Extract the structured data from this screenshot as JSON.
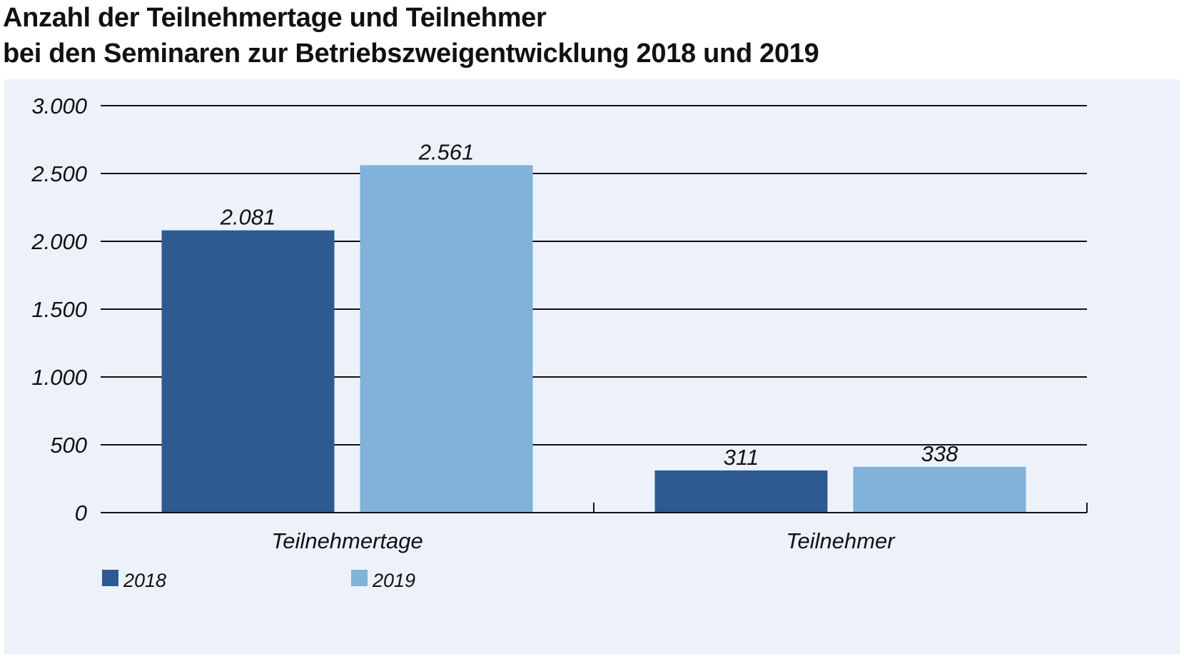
{
  "header": {
    "title_line1": "Anzahl der Teilnehmertage und  Teilnehmer",
    "title_line2": "bei den Seminaren zur Betriebszweigentwicklung 2018 und 2019"
  },
  "colors": {
    "panel_background": "#edf1f9",
    "series_2018": "#2d5a90",
    "series_2019": "#80b2da",
    "gridline": "#111111"
  },
  "chart_data": {
    "type": "bar",
    "title": "Anzahl der Teilnehmertage und  Teilnehmer bei den Seminaren zur Betriebszweigentwicklung 2018 und 2019",
    "categories": [
      "Teilnehmertage",
      "Teilnehmer"
    ],
    "series": [
      {
        "name": "2018",
        "values": [
          2081,
          311
        ],
        "labels": [
          "2.081",
          "311"
        ],
        "color": "#2d5a90"
      },
      {
        "name": "2019",
        "values": [
          2561,
          338
        ],
        "labels": [
          "2.561",
          "338"
        ],
        "color": "#80b2da"
      }
    ],
    "ylim": [
      0,
      3000
    ],
    "yticks": [
      0,
      500,
      1000,
      1500,
      2000,
      2500,
      3000
    ],
    "ytick_labels": [
      "0",
      "500",
      "1.000",
      "1.500",
      "2.000",
      "2.500",
      "3.000"
    ],
    "xlabel": "",
    "ylabel": "",
    "grid": true,
    "legend_position": "bottom-left"
  }
}
